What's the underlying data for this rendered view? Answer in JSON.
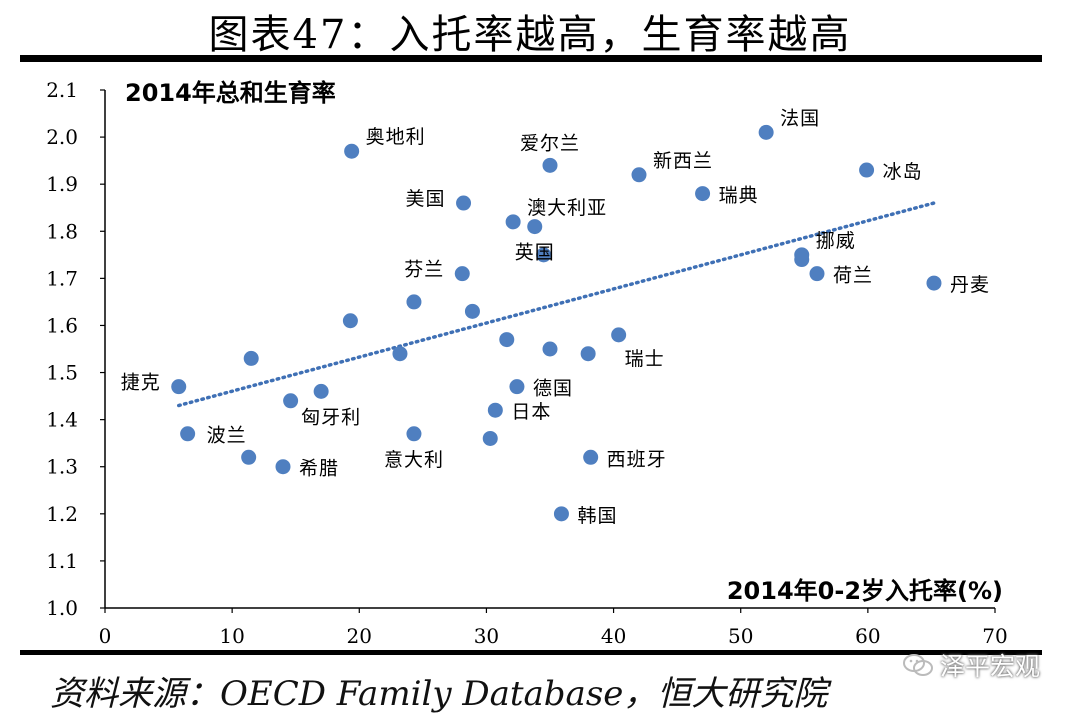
{
  "title": "图表47：入托率越高，生育率越高",
  "source": "资料来源：OECD Family Database，恒大研究院",
  "watermark": "泽平宏观",
  "colors": {
    "point": "#4f7fc0",
    "trend": "#3f70b5",
    "axis": "#000000",
    "text": "#000000"
  },
  "chart_data": {
    "type": "scatter",
    "title": "2014年总和生育率",
    "xlabel": "2014年0-2岁入托率(%)",
    "ylabel": "2014年总和生育率",
    "xlim": [
      0,
      70
    ],
    "ylim": [
      1.0,
      2.1
    ],
    "xticks": [
      "0",
      "10",
      "20",
      "30",
      "40",
      "50",
      "60",
      "70"
    ],
    "yticks": [
      "1.0",
      "1.1",
      "1.2",
      "1.3",
      "1.4",
      "1.5",
      "1.6",
      "1.7",
      "1.8",
      "1.9",
      "2.0",
      "2.1"
    ],
    "grid": false,
    "trendline": {
      "style": "dotted",
      "x": [
        5.8,
        65.2
      ],
      "y": [
        1.43,
        1.86
      ]
    },
    "points": [
      {
        "x": 5.8,
        "y": 1.47,
        "label": "捷克",
        "pos": "left"
      },
      {
        "x": 6.5,
        "y": 1.37,
        "label": "",
        "pos": "none"
      },
      {
        "x": 11.3,
        "y": 1.32,
        "label": "波兰",
        "pos": "upleft"
      },
      {
        "x": 11.5,
        "y": 1.53,
        "label": "",
        "pos": "none"
      },
      {
        "x": 14.0,
        "y": 1.3,
        "label": "希腊",
        "pos": "right"
      },
      {
        "x": 14.6,
        "y": 1.44,
        "label": "",
        "pos": "none"
      },
      {
        "x": 17.0,
        "y": 1.46,
        "label": "匈牙利",
        "pos": "belowleft"
      },
      {
        "x": 19.3,
        "y": 1.61,
        "label": "",
        "pos": "none"
      },
      {
        "x": 19.4,
        "y": 1.97,
        "label": "奥地利",
        "pos": "upright"
      },
      {
        "x": 23.2,
        "y": 1.54,
        "label": "",
        "pos": "none"
      },
      {
        "x": 24.3,
        "y": 1.65,
        "label": "",
        "pos": "none"
      },
      {
        "x": 24.3,
        "y": 1.37,
        "label": "意大利",
        "pos": "below"
      },
      {
        "x": 28.1,
        "y": 1.71,
        "label": "芬兰",
        "pos": "left"
      },
      {
        "x": 28.2,
        "y": 1.86,
        "label": "美国",
        "pos": "left"
      },
      {
        "x": 28.9,
        "y": 1.63,
        "label": "",
        "pos": "none"
      },
      {
        "x": 30.3,
        "y": 1.36,
        "label": "",
        "pos": "none"
      },
      {
        "x": 30.7,
        "y": 1.42,
        "label": "日本",
        "pos": "right"
      },
      {
        "x": 31.6,
        "y": 1.57,
        "label": "",
        "pos": "none"
      },
      {
        "x": 32.1,
        "y": 1.82,
        "label": "澳大利亚",
        "pos": "upright"
      },
      {
        "x": 32.4,
        "y": 1.47,
        "label": "德国",
        "pos": "right"
      },
      {
        "x": 33.8,
        "y": 1.81,
        "label": "英国",
        "pos": "below"
      },
      {
        "x": 34.5,
        "y": 1.75,
        "label": "",
        "pos": "none"
      },
      {
        "x": 35.0,
        "y": 1.55,
        "label": "",
        "pos": "none"
      },
      {
        "x": 35.0,
        "y": 1.94,
        "label": "爱尔兰",
        "pos": "up"
      },
      {
        "x": 35.9,
        "y": 1.2,
        "label": "韩国",
        "pos": "right"
      },
      {
        "x": 38.0,
        "y": 1.54,
        "label": "",
        "pos": "none"
      },
      {
        "x": 38.2,
        "y": 1.32,
        "label": "西班牙",
        "pos": "right"
      },
      {
        "x": 40.4,
        "y": 1.58,
        "label": "瑞士",
        "pos": "belowright"
      },
      {
        "x": 42.0,
        "y": 1.92,
        "label": "新西兰",
        "pos": "upright"
      },
      {
        "x": 47.0,
        "y": 1.88,
        "label": "瑞典",
        "pos": "right"
      },
      {
        "x": 52.0,
        "y": 2.01,
        "label": "法国",
        "pos": "upright"
      },
      {
        "x": 54.8,
        "y": 1.75,
        "label": "挪威",
        "pos": "upright"
      },
      {
        "x": 54.8,
        "y": 1.74,
        "label": "",
        "pos": "none"
      },
      {
        "x": 56.0,
        "y": 1.71,
        "label": "荷兰",
        "pos": "right"
      },
      {
        "x": 59.9,
        "y": 1.93,
        "label": "冰岛",
        "pos": "right"
      },
      {
        "x": 65.2,
        "y": 1.69,
        "label": "丹麦",
        "pos": "right"
      }
    ]
  }
}
